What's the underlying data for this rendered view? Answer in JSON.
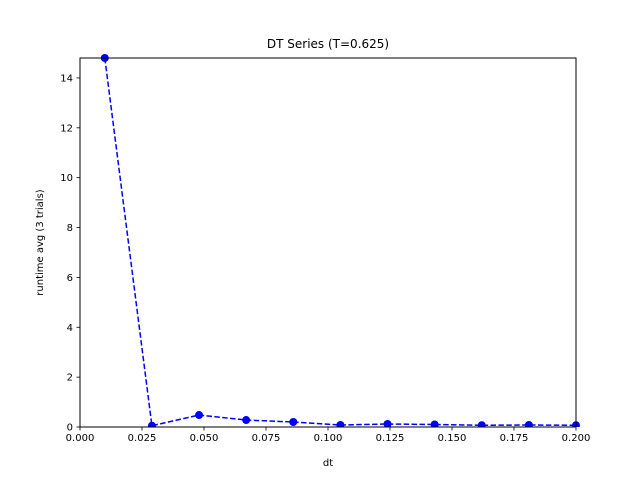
{
  "chart_data": {
    "type": "line",
    "title": "DT Series (T=0.625)",
    "xlabel": "dt",
    "ylabel": "runtime avg (3 trials)",
    "xlim": [
      0.0,
      0.2
    ],
    "ylim": [
      0,
      14.8
    ],
    "x_ticks": [
      "0.000",
      "0.025",
      "0.050",
      "0.075",
      "0.100",
      "0.125",
      "0.150",
      "0.175",
      "0.200"
    ],
    "y_ticks": [
      "0",
      "2",
      "4",
      "6",
      "8",
      "10",
      "12",
      "14"
    ],
    "grid": false,
    "legend": "none",
    "line_style": "dashed",
    "marker": "circle",
    "series": [
      {
        "color": "#0000ff",
        "x": [
          0.01,
          0.029,
          0.048,
          0.067,
          0.086,
          0.105,
          0.124,
          0.143,
          0.162,
          0.181,
          0.2
        ],
        "y": [
          14.8,
          0.05,
          0.48,
          0.28,
          0.2,
          0.08,
          0.12,
          0.1,
          0.07,
          0.08,
          0.07
        ]
      }
    ]
  }
}
